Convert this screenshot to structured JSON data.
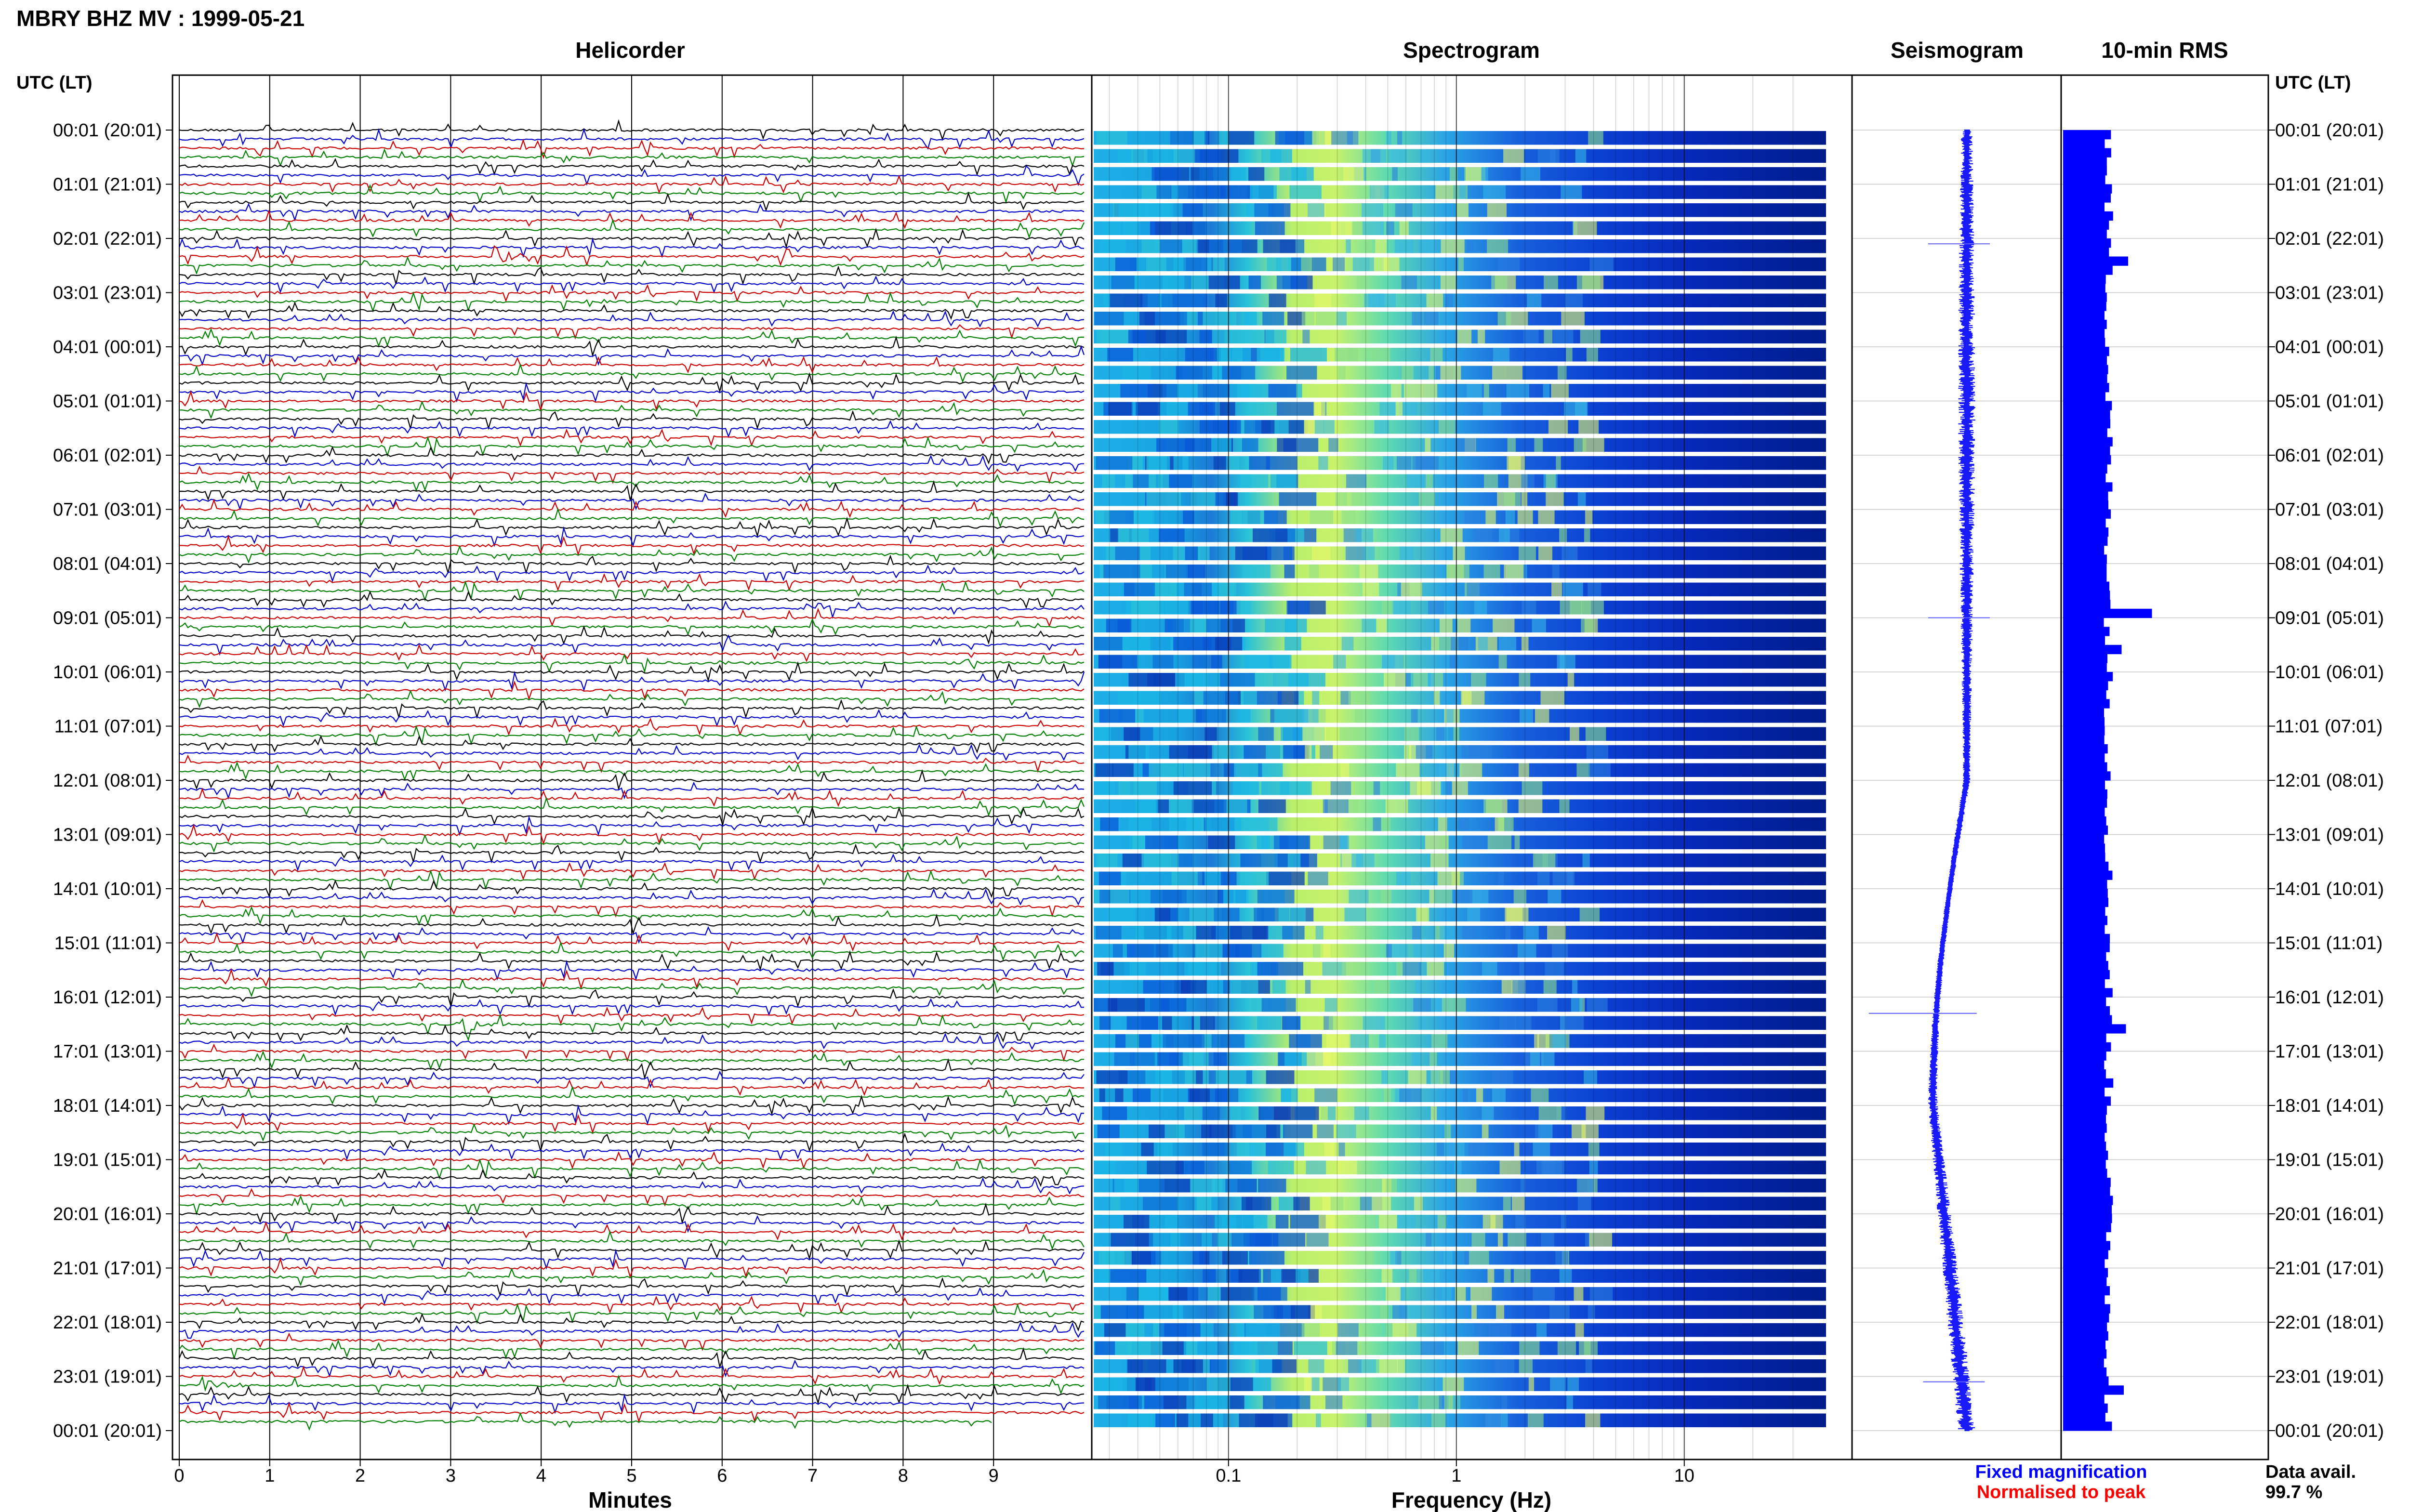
{
  "figure": {
    "title": "MBRY BHZ MV : 1999-05-21",
    "panels": {
      "helicorder": "Helicorder",
      "spectrogram": "Spectrogram",
      "seismogram": "Seismogram",
      "rms": "10-min RMS"
    },
    "utc_header": "UTC (LT)",
    "legend": {
      "fixed": "Fixed magnification",
      "normalised": "Normalised to peak",
      "fixed_color": "#0000ff",
      "normalised_color": "#ff0000"
    },
    "data_avail": {
      "label": "Data avail.",
      "value": "99.7 %"
    }
  },
  "chart_data": [
    {
      "type": "line",
      "name": "helicorder",
      "title": "Helicorder",
      "xlabel": "Minutes",
      "x_ticks": [
        "0",
        "1",
        "2",
        "3",
        "4",
        "5",
        "6",
        "7",
        "8",
        "9"
      ],
      "xlim": [
        0,
        10
      ],
      "row_labels_left": [
        "00:01 (20:01)",
        "01:01 (21:01)",
        "02:01 (22:01)",
        "03:01 (23:01)",
        "04:01 (00:01)",
        "05:01 (01:01)",
        "06:01 (02:01)",
        "07:01 (03:01)",
        "08:01 (04:01)",
        "09:01 (05:01)",
        "10:01 (06:01)",
        "11:01 (07:01)",
        "12:01 (08:01)",
        "13:01 (09:01)",
        "14:01 (10:01)",
        "15:01 (11:01)",
        "16:01 (12:01)",
        "17:01 (13:01)",
        "18:01 (14:01)",
        "19:01 (15:01)",
        "20:01 (16:01)",
        "21:01 (17:01)",
        "22:01 (18:01)",
        "23:01 (19:01)",
        "00:01 (20:01)"
      ],
      "rows": 144,
      "trace_colors": [
        "#000000",
        "#0000cc",
        "#cc0000",
        "#008000"
      ],
      "events": [
        {
          "row": 11,
          "minute": 6.8,
          "amp": 0.3
        },
        {
          "row": 14,
          "minute": 3.5,
          "amp": 1.6
        },
        {
          "row": 14,
          "minute": 9.4,
          "amp": 0.7
        },
        {
          "row": 19,
          "minute": 4.5,
          "amp": 0.5
        },
        {
          "row": 53,
          "minute": 6.95,
          "amp": 2.4
        },
        {
          "row": 57,
          "minute": 6.0,
          "amp": 1.2
        },
        {
          "row": 59,
          "minute": 6.0,
          "amp": 0.5
        },
        {
          "row": 59,
          "minute": 8.7,
          "amp": 0.5
        },
        {
          "row": 76,
          "minute": 5.2,
          "amp": 0.7
        },
        {
          "row": 99,
          "minute": 3.1,
          "amp": 2.8
        },
        {
          "row": 139,
          "minute": 0.25,
          "amp": 1.9
        }
      ]
    },
    {
      "type": "heatmap",
      "name": "spectrogram",
      "title": "Spectrogram",
      "xlabel": "Frequency (Hz)",
      "x_scale": "log",
      "xlim": [
        0.025,
        40
      ],
      "x_ticks": [
        "0.1",
        "1",
        "10"
      ],
      "rows": 72,
      "colormap": "jet",
      "peak_band_hz": [
        0.2,
        0.5
      ]
    },
    {
      "type": "line",
      "name": "seismogram",
      "title": "Seismogram",
      "description_of_shape": "compressed 24-h trace drifting left around 17:00-20:00 UTC",
      "spikes_utc_hours": [
        2.1,
        9.0,
        16.3,
        23.1
      ]
    },
    {
      "type": "bar",
      "name": "rms",
      "title": "10-min RMS",
      "orientation": "horizontal",
      "bars": 144,
      "baseline_value": 1.0,
      "peaks": [
        {
          "bar": 14,
          "value": 1.5
        },
        {
          "bar": 53,
          "value": 2.05
        },
        {
          "bar": 57,
          "value": 1.35
        },
        {
          "bar": 99,
          "value": 1.45
        },
        {
          "bar": 139,
          "value": 1.4
        }
      ]
    }
  ]
}
